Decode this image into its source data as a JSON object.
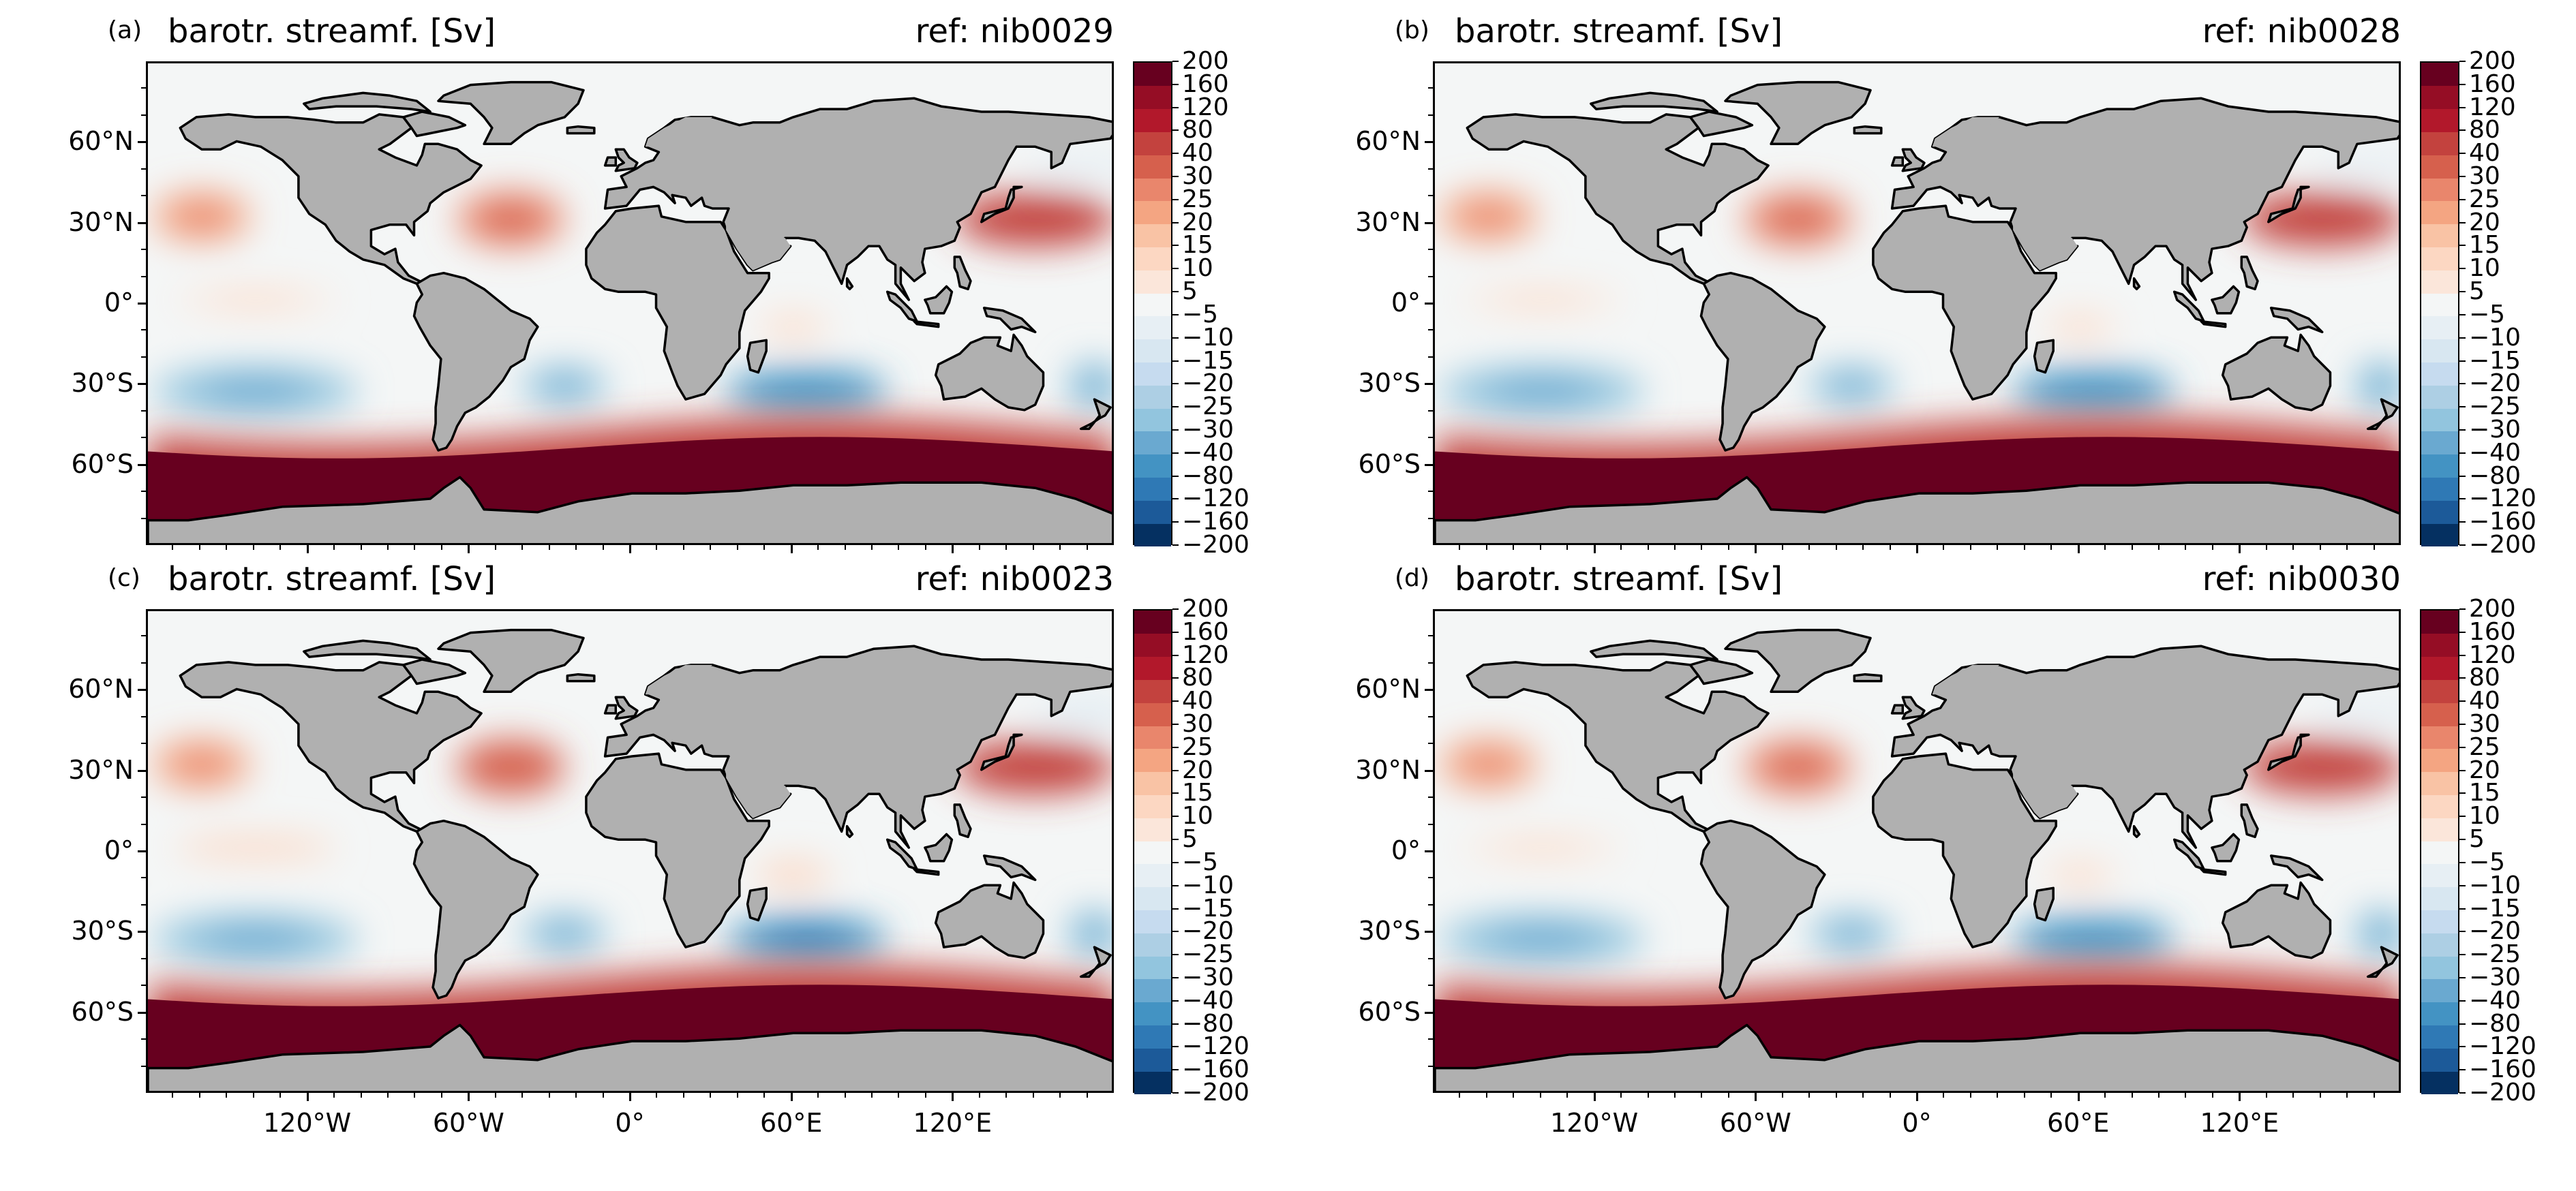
{
  "chart_data": [
    {
      "type": "heatmap",
      "panel_label": "(a)",
      "title": "barotr. streamf. [Sv]",
      "ref_label": "ref: nib0029",
      "variable": "barotropic streamfunction",
      "units": "Sv",
      "lon_range": [
        -180,
        180
      ],
      "lat_range": [
        -90,
        90
      ],
      "colormap": "RdBu_r",
      "feature_values_sv": {
        "antarctic_circumpolar_current": 180,
        "north_pacific_gyre": 45,
        "north_atlantic_gyre": 25,
        "south_pacific_gyre": -30,
        "south_atlantic_gyre": -30,
        "south_indian_gyre": -55,
        "equatorial_pacific": 8,
        "north_pacific_subpolar": -8
      }
    },
    {
      "type": "heatmap",
      "panel_label": "(b)",
      "title": "barotr. streamf. [Sv]",
      "ref_label": "ref: nib0028",
      "variable": "barotropic streamfunction",
      "units": "Sv",
      "lon_range": [
        -180,
        180
      ],
      "lat_range": [
        -90,
        90
      ],
      "colormap": "RdBu_r",
      "feature_values_sv": {
        "antarctic_circumpolar_current": 170,
        "north_pacific_gyre": 45,
        "north_atlantic_gyre": 25,
        "south_pacific_gyre": -30,
        "south_atlantic_gyre": -30,
        "south_indian_gyre": -60,
        "equatorial_pacific": 8,
        "north_pacific_subpolar": -8
      }
    },
    {
      "type": "heatmap",
      "panel_label": "(c)",
      "title": "barotr. streamf. [Sv]",
      "ref_label": "ref: nib0023",
      "variable": "barotropic streamfunction",
      "units": "Sv",
      "lon_range": [
        -180,
        180
      ],
      "lat_range": [
        -90,
        90
      ],
      "colormap": "RdBu_r",
      "feature_values_sv": {
        "antarctic_circumpolar_current": 170,
        "north_pacific_gyre": 50,
        "north_atlantic_gyre": 30,
        "south_pacific_gyre": -30,
        "south_atlantic_gyre": -30,
        "south_indian_gyre": -70,
        "equatorial_pacific": 10,
        "north_pacific_subpolar": -10
      }
    },
    {
      "type": "heatmap",
      "panel_label": "(d)",
      "title": "barotr. streamf. [Sv]",
      "ref_label": "ref: nib0030",
      "variable": "barotropic streamfunction",
      "units": "Sv",
      "lon_range": [
        -180,
        180
      ],
      "lat_range": [
        -90,
        90
      ],
      "colormap": "RdBu_r",
      "feature_values_sv": {
        "antarctic_circumpolar_current": 170,
        "north_pacific_gyre": 45,
        "north_atlantic_gyre": 25,
        "south_pacific_gyre": -30,
        "south_atlantic_gyre": -30,
        "south_indian_gyre": -60,
        "equatorial_pacific": 8,
        "north_pacific_subpolar": -8
      }
    }
  ],
  "axes": {
    "y_ticks": [
      {
        "lat": 60,
        "label": "60°N"
      },
      {
        "lat": 30,
        "label": "30°N"
      },
      {
        "lat": 0,
        "label": "0°"
      },
      {
        "lat": -30,
        "label": "30°S"
      },
      {
        "lat": -60,
        "label": "60°S"
      }
    ],
    "x_ticks": [
      {
        "lon": -120,
        "label": "120°W"
      },
      {
        "lon": -60,
        "label": "60°W"
      },
      {
        "lon": 0,
        "label": "0°"
      },
      {
        "lon": 60,
        "label": "60°E"
      },
      {
        "lon": 120,
        "label": "120°E"
      }
    ]
  },
  "colorbar": {
    "levels": [
      -200,
      -160,
      -120,
      -80,
      -40,
      -30,
      -25,
      -20,
      -15,
      -10,
      -5,
      5,
      10,
      15,
      20,
      25,
      30,
      40,
      80,
      120,
      160,
      200
    ],
    "tick_labels": [
      "200",
      "160",
      "120",
      "80",
      "40",
      "30",
      "25",
      "20",
      "15",
      "10",
      "5",
      "−5",
      "−10",
      "−15",
      "−20",
      "−25",
      "−30",
      "−40",
      "−80",
      "−120",
      "−160",
      "−200"
    ],
    "colors": [
      "#053061",
      "#1c5a99",
      "#2f79b5",
      "#4393c3",
      "#6aa9d0",
      "#92c5de",
      "#adcfe4",
      "#c6dbef",
      "#d8e7f1",
      "#e7eff4",
      "#f4f6f6",
      "#fbe6da",
      "#fcd7c2",
      "#f9c3a5",
      "#f4a582",
      "#e9866c",
      "#d6604d",
      "#c3423e",
      "#b2182b",
      "#950d25",
      "#67001f"
    ]
  },
  "colors": {
    "land": "#b0b0b0",
    "coastline": "#000000",
    "ocean_neutral": "#f4f6f6",
    "acc_red": "#c3312d",
    "gyre_blue": "#4a8fc2",
    "gyre_red": "#e9856a"
  }
}
